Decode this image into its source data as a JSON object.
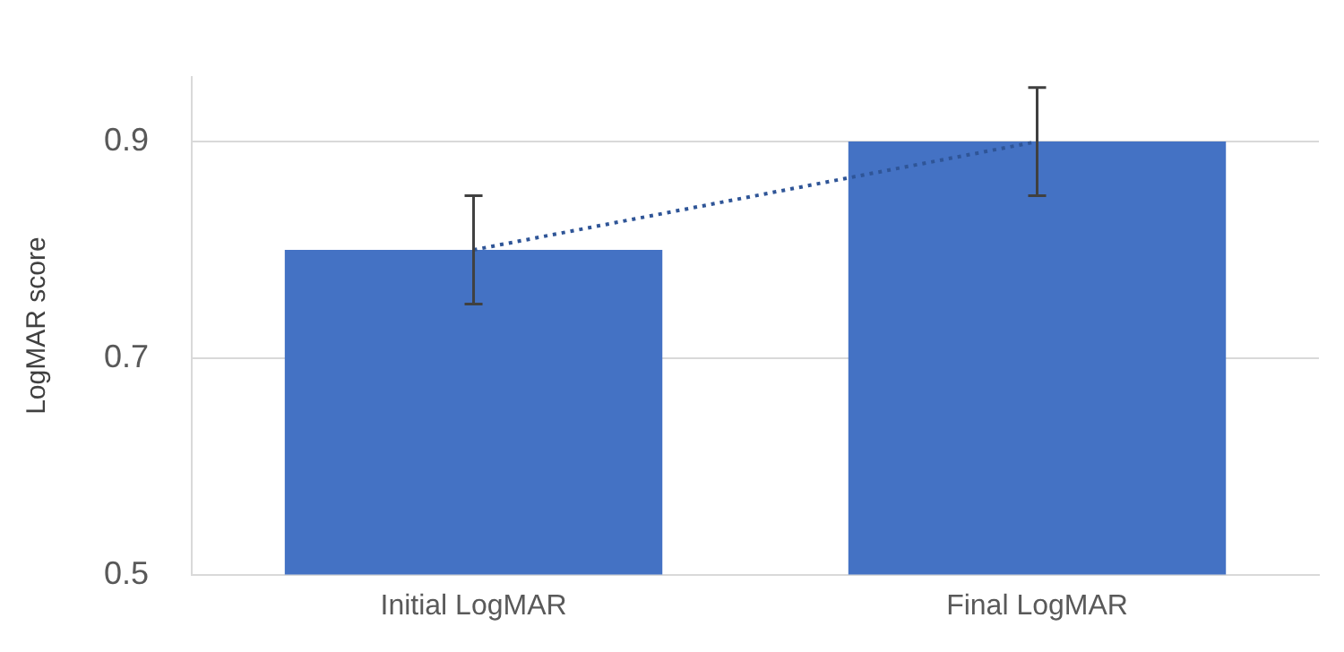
{
  "chart_data": {
    "type": "bar",
    "ylabel": "LogMAR score",
    "categories": [
      "Initial LogMAR",
      "Final LogMAR"
    ],
    "series": [
      {
        "color": "#4472c4",
        "values": [
          0.8,
          0.9
        ],
        "errors": [
          0.05,
          0.05
        ]
      },
      {
        "type": "line",
        "color": "#2f5597",
        "values": [
          0.8,
          0.9
        ],
        "line_style": "dotted",
        "marker": "none"
      }
    ],
    "ylim": [
      0.5,
      0.96
    ],
    "yticks": [
      0.5,
      0.7,
      0.9
    ],
    "grid": "y",
    "legend": false
  }
}
